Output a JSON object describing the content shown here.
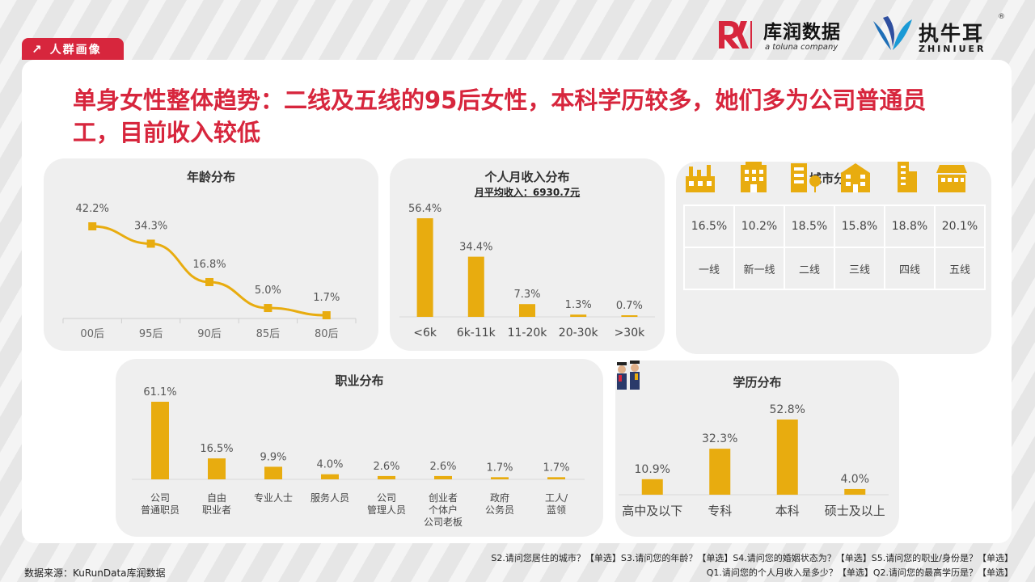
{
  "tag": {
    "label": "人群画像",
    "arrow": "↗"
  },
  "logos": {
    "kurun_cn": "库润数据",
    "kurun_sub": "a toluna company",
    "zhiniuer_cn": "执牛耳",
    "zhiniuer_en": "ZHINIUER",
    "registered": "®"
  },
  "headline": "单身女性整体趋势：二线及五线的95后女性，本科学历较多，她们多为公司普通员工，目前收入较低",
  "accent_color": "#d7263d",
  "bar_color": "#e8ac0f",
  "footer": {
    "source": "数据来源：KuRunData库润数据",
    "questions_line1": "S2.请问您居住的城市？【单选】S3.请问您的年龄？【单选】S4.请问您的婚姻状态为？【单选】S5.请问您的职业/身份是？【单选】",
    "questions_line2": "Q1.请问您的个人月收入是多少？【单选】Q2.请问您的最高学历是？【单选】"
  },
  "chart_data": [
    {
      "id": "age",
      "type": "line",
      "title": "年龄分布",
      "categories": [
        "00后",
        "95后",
        "90后",
        "85后",
        "80后"
      ],
      "values": [
        42.2,
        34.3,
        16.8,
        5.0,
        1.7
      ],
      "labels": [
        "42.2%",
        "34.3%",
        "16.8%",
        "5.0%",
        "1.7%"
      ],
      "unit": "%"
    },
    {
      "id": "income",
      "type": "bar",
      "title": "个人月收入分布",
      "subtitle": "月平均收入：6930.7元",
      "categories": [
        "<6k",
        "6k-11k",
        "11-20k",
        "20-30k",
        ">30k"
      ],
      "values": [
        56.4,
        34.4,
        7.3,
        1.3,
        0.7
      ],
      "labels": [
        "56.4%",
        "34.4%",
        "7.3%",
        "1.3%",
        "0.7%"
      ],
      "unit": "%"
    },
    {
      "id": "city",
      "type": "table",
      "title": "城市分布",
      "categories": [
        "一线",
        "新一线",
        "二线",
        "三线",
        "四线",
        "五线"
      ],
      "values": [
        16.5,
        10.2,
        18.5,
        15.8,
        18.8,
        20.1
      ],
      "labels": [
        "16.5%",
        "10.2%",
        "18.5%",
        "15.8%",
        "18.8%",
        "20.1%"
      ],
      "unit": "%",
      "icons": [
        "factory-icon",
        "office-tower-icon",
        "building-tree-icon",
        "apartment-icon",
        "tall-tower-icon",
        "shop-icon"
      ]
    },
    {
      "id": "job",
      "type": "bar",
      "title": "职业分布",
      "categories": [
        "公司\n普通职员",
        "自由\n职业者",
        "专业人士",
        "服务人员",
        "公司\n管理人员",
        "创业者\n个体户\n公司老板",
        "政府\n公务员",
        "工人/\n蓝领"
      ],
      "values": [
        61.1,
        16.5,
        9.9,
        4.0,
        2.6,
        2.6,
        1.7,
        1.7
      ],
      "labels": [
        "61.1%",
        "16.5%",
        "9.9%",
        "4.0%",
        "2.6%",
        "2.6%",
        "1.7%",
        "1.7%"
      ],
      "unit": "%"
    },
    {
      "id": "edu",
      "type": "bar",
      "title": "学历分布",
      "categories": [
        "高中及以下",
        "专科",
        "本科",
        "硕士及以上"
      ],
      "values": [
        10.9,
        32.3,
        52.8,
        4.0
      ],
      "labels": [
        "10.9%",
        "32.3%",
        "52.8%",
        "4.0%"
      ],
      "unit": "%"
    }
  ]
}
